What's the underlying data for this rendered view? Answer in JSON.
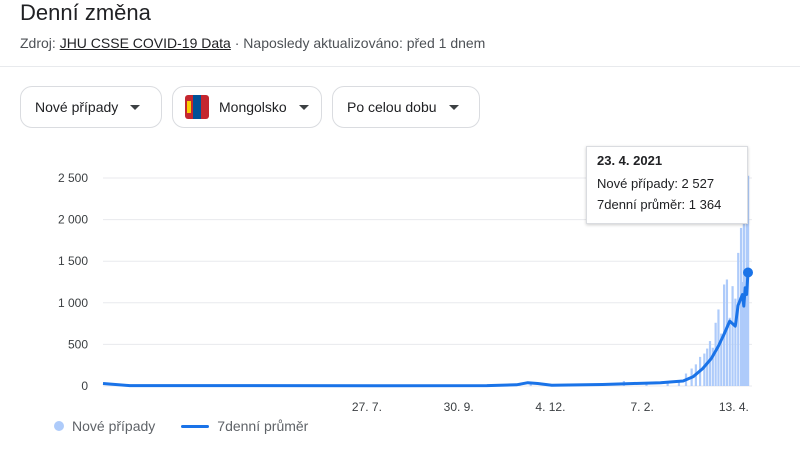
{
  "header": {
    "title": "Denní změna",
    "source_prefix": "Zdroj:",
    "source_link": "JHU CSSE COVID-19 Data",
    "updated": "· Naposledy aktualizováno: před 1 dnem"
  },
  "filters": {
    "metric": "Nové případy",
    "country": "Mongolsko",
    "range": "Po celou dobu"
  },
  "tooltip": {
    "date": "23. 4. 2021",
    "cases_label": "Nové případy: 2 527",
    "avg_label": "7denní průměr: 1 364"
  },
  "legend": {
    "bars": "Nové případy",
    "line": "7denní průměr"
  },
  "colors": {
    "bar": "#aecbfa",
    "line": "#1a73e8",
    "grid": "#e8eaed"
  },
  "chart_data": {
    "type": "bar",
    "title": "Denní změna",
    "y_ticks": [
      "0",
      "500",
      "1 000",
      "1 500",
      "2 000",
      "2 500"
    ],
    "ylim": [
      0,
      2600
    ],
    "x_ticks": [
      "27. 7.",
      "30. 9.",
      "4. 12.",
      "7. 2.",
      "13. 4."
    ],
    "x_range": [
      "2020-01-22",
      "2021-04-23"
    ],
    "series": [
      {
        "name": "Nové případy",
        "kind": "bar",
        "points": [
          [
            "2020-03-10",
            2
          ],
          [
            "2020-05-01",
            3
          ],
          [
            "2020-06-10",
            6
          ],
          [
            "2020-08-20",
            2
          ],
          [
            "2020-11-12",
            10
          ],
          [
            "2020-11-20",
            40
          ],
          [
            "2020-12-05",
            12
          ],
          [
            "2021-01-05",
            25
          ],
          [
            "2021-01-25",
            60
          ],
          [
            "2021-02-10",
            40
          ],
          [
            "2021-02-25",
            60
          ],
          [
            "2021-03-05",
            70
          ],
          [
            "2021-03-10",
            150
          ],
          [
            "2021-03-14",
            210
          ],
          [
            "2021-03-17",
            260
          ],
          [
            "2021-03-20",
            350
          ],
          [
            "2021-03-23",
            390
          ],
          [
            "2021-03-25",
            450
          ],
          [
            "2021-03-27",
            540
          ],
          [
            "2021-03-29",
            460
          ],
          [
            "2021-03-31",
            760
          ],
          [
            "2021-04-02",
            920
          ],
          [
            "2021-04-04",
            630
          ],
          [
            "2021-04-06",
            1220
          ],
          [
            "2021-04-08",
            1280
          ],
          [
            "2021-04-10",
            820
          ],
          [
            "2021-04-12",
            1200
          ],
          [
            "2021-04-14",
            1050
          ],
          [
            "2021-04-16",
            1600
          ],
          [
            "2021-04-18",
            1900
          ],
          [
            "2021-04-19",
            1250
          ],
          [
            "2021-04-20",
            2000
          ],
          [
            "2021-04-21",
            1400
          ],
          [
            "2021-04-22",
            2100
          ],
          [
            "2021-04-23",
            2527
          ]
        ]
      },
      {
        "name": "7denní průměr",
        "kind": "line",
        "points": [
          [
            "2020-01-22",
            30
          ],
          [
            "2020-02-10",
            5
          ],
          [
            "2020-05-01",
            5
          ],
          [
            "2020-08-01",
            3
          ],
          [
            "2020-10-20",
            5
          ],
          [
            "2020-11-10",
            15
          ],
          [
            "2020-11-18",
            40
          ],
          [
            "2020-11-25",
            30
          ],
          [
            "2020-12-05",
            10
          ],
          [
            "2021-01-10",
            18
          ],
          [
            "2021-02-01",
            30
          ],
          [
            "2021-02-20",
            40
          ],
          [
            "2021-03-01",
            50
          ],
          [
            "2021-03-08",
            60
          ],
          [
            "2021-03-15",
            110
          ],
          [
            "2021-03-22",
            210
          ],
          [
            "2021-03-28",
            330
          ],
          [
            "2021-04-02",
            480
          ],
          [
            "2021-04-06",
            620
          ],
          [
            "2021-04-10",
            780
          ],
          [
            "2021-04-14",
            720
          ],
          [
            "2021-04-16",
            970
          ],
          [
            "2021-04-19",
            1100
          ],
          [
            "2021-04-20",
            960
          ],
          [
            "2021-04-21",
            1180
          ],
          [
            "2021-04-22",
            1100
          ],
          [
            "2021-04-23",
            1364
          ]
        ]
      }
    ],
    "highlight": {
      "date": "2021-04-23",
      "value": 1364
    }
  }
}
